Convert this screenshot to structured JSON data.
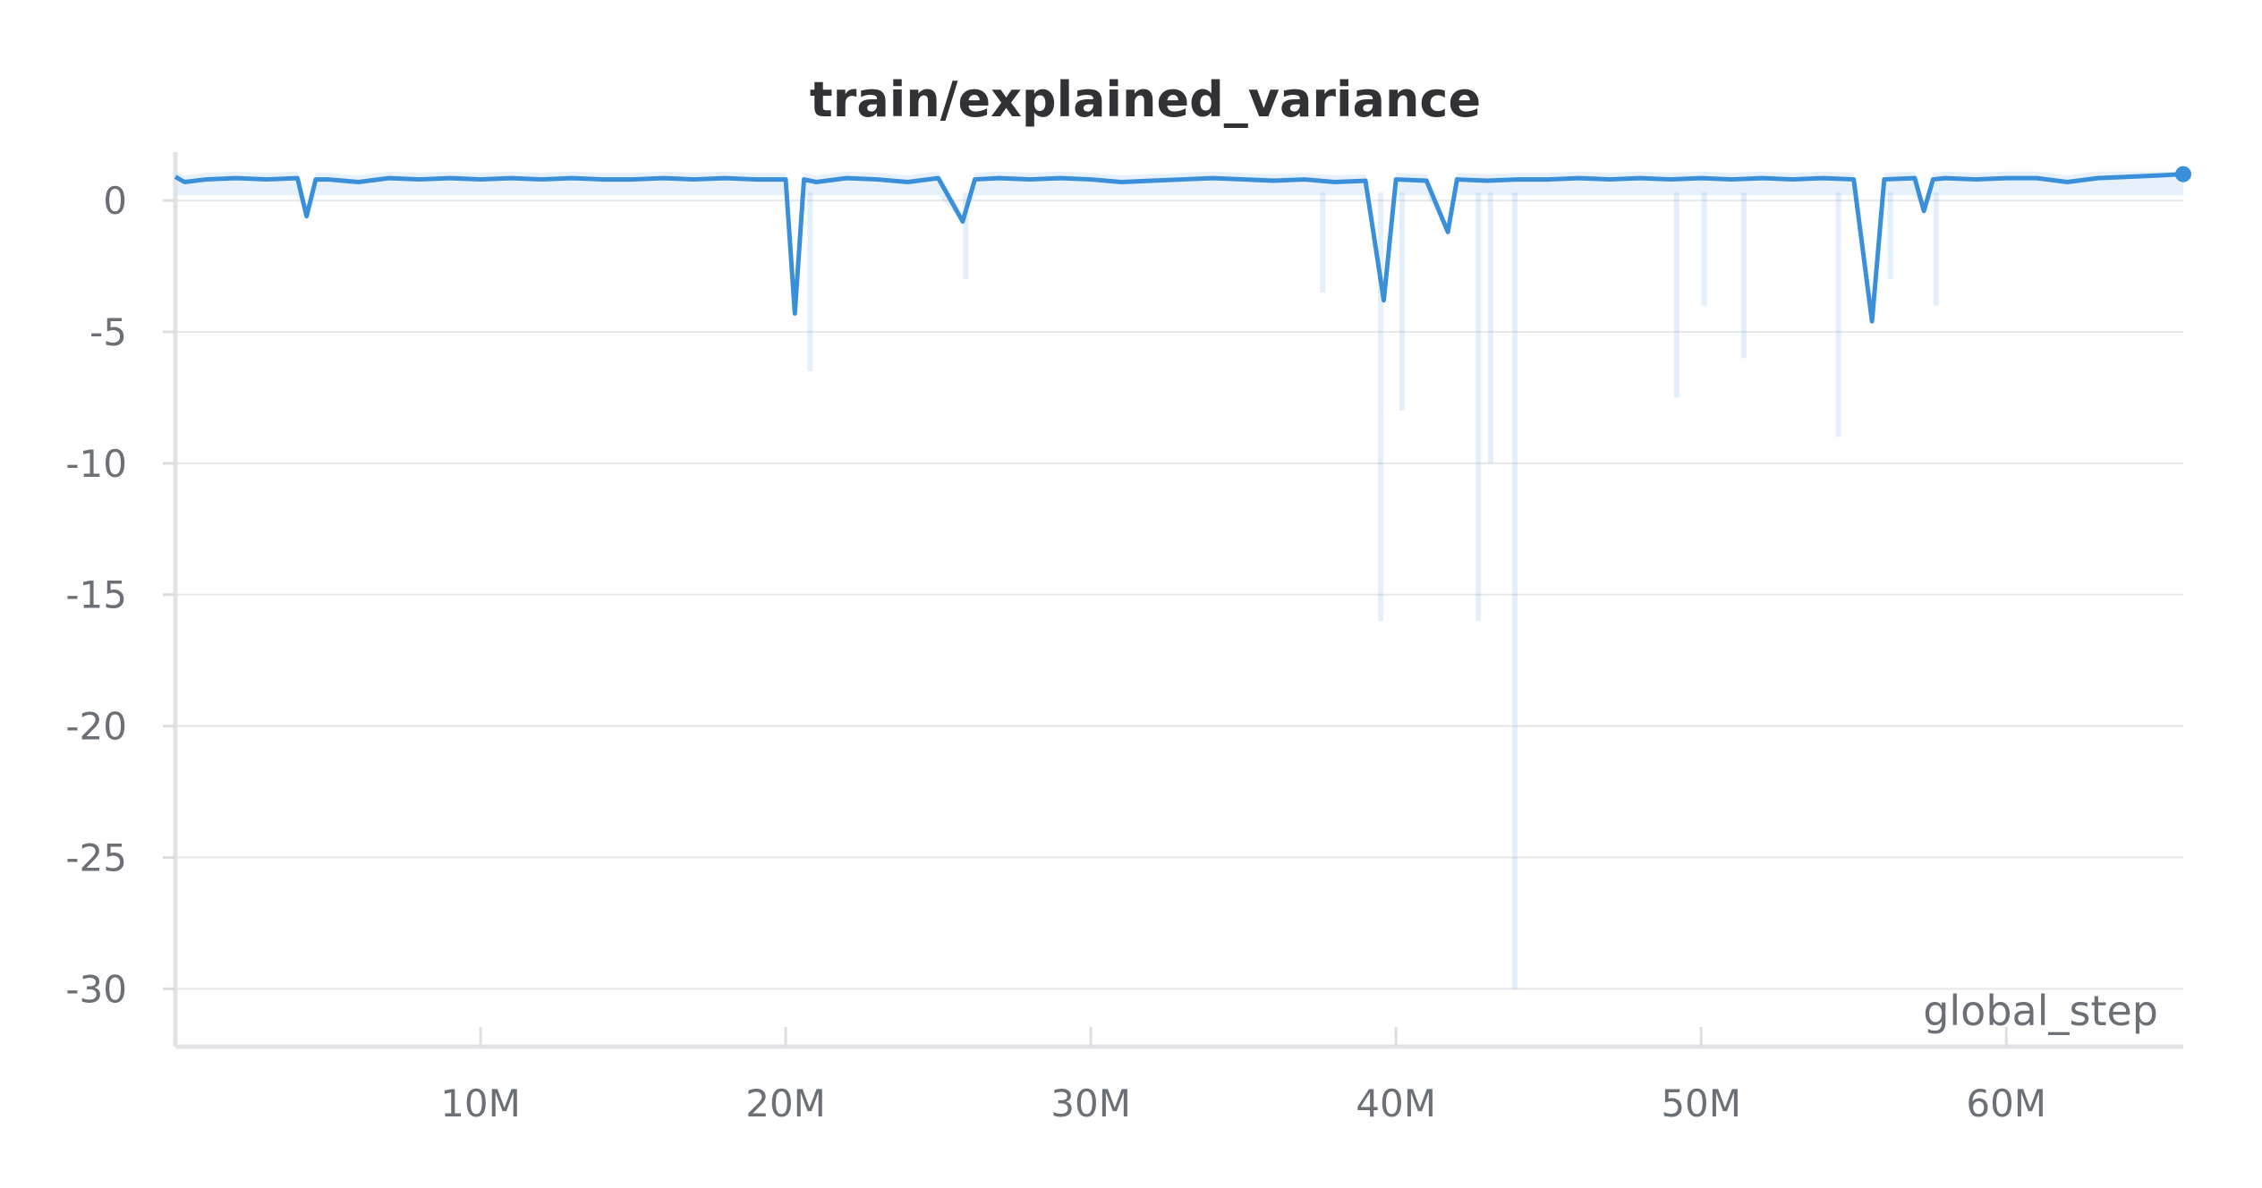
{
  "chart_data": {
    "type": "line",
    "title": "train/explained_variance",
    "xlabel": "global_step",
    "ylabel": "",
    "xlim": [
      0,
      65800000
    ],
    "ylim": [
      -32.2,
      1.5
    ],
    "grid": true,
    "legend": "none",
    "x_ticks": [
      {
        "value": 10000000,
        "label": "10M"
      },
      {
        "value": 20000000,
        "label": "20M"
      },
      {
        "value": 30000000,
        "label": "30M"
      },
      {
        "value": 40000000,
        "label": "40M"
      },
      {
        "value": 50000000,
        "label": "50M"
      },
      {
        "value": 60000000,
        "label": "60M"
      }
    ],
    "y_ticks": [
      {
        "value": 0,
        "label": "0"
      },
      {
        "value": -5,
        "label": "-5"
      },
      {
        "value": -10,
        "label": "-10"
      },
      {
        "value": -15,
        "label": "-15"
      },
      {
        "value": -20,
        "label": "-20"
      },
      {
        "value": -25,
        "label": "-25"
      },
      {
        "value": -30,
        "label": "-30"
      }
    ],
    "series": [
      {
        "color": "#3a8fdb",
        "x": [
          0,
          300000,
          1000000,
          2000000,
          3000000,
          4000000,
          4300000,
          4600000,
          5000000,
          6000000,
          7000000,
          8000000,
          9000000,
          10000000,
          11000000,
          12000000,
          13000000,
          14000000,
          15000000,
          16000000,
          17000000,
          18000000,
          19000000,
          20000000,
          20300000,
          20600000,
          21000000,
          22000000,
          23000000,
          24000000,
          25000000,
          25800000,
          26200000,
          27000000,
          28000000,
          29000000,
          30000000,
          31000000,
          32000000,
          33000000,
          34000000,
          35000000,
          36000000,
          37000000,
          38000000,
          39000000,
          39600000,
          40000000,
          41000000,
          41700000,
          42000000,
          43000000,
          44000000,
          45000000,
          46000000,
          47000000,
          48000000,
          49000000,
          50000000,
          51000000,
          52000000,
          53000000,
          54000000,
          55000000,
          55600000,
          56000000,
          57000000,
          57300000,
          57600000,
          58000000,
          59000000,
          60000000,
          61000000,
          62000000,
          63000000,
          64000000,
          65000000,
          65800000
        ],
        "y": [
          0.9,
          0.7,
          0.8,
          0.85,
          0.8,
          0.85,
          -0.6,
          0.8,
          0.8,
          0.7,
          0.85,
          0.8,
          0.85,
          0.8,
          0.85,
          0.8,
          0.85,
          0.8,
          0.8,
          0.85,
          0.8,
          0.85,
          0.8,
          0.8,
          -4.3,
          0.8,
          0.7,
          0.85,
          0.8,
          0.7,
          0.85,
          -0.8,
          0.8,
          0.85,
          0.8,
          0.85,
          0.8,
          0.7,
          0.75,
          0.8,
          0.85,
          0.8,
          0.75,
          0.8,
          0.7,
          0.75,
          -3.8,
          0.8,
          0.75,
          -1.2,
          0.8,
          0.75,
          0.8,
          0.8,
          0.85,
          0.8,
          0.85,
          0.8,
          0.85,
          0.8,
          0.85,
          0.8,
          0.85,
          0.8,
          -4.6,
          0.8,
          0.85,
          -0.4,
          0.8,
          0.85,
          0.8,
          0.85,
          0.85,
          0.7,
          0.85,
          0.9,
          0.95,
          1.0
        ]
      }
    ],
    "shaded_spikes": [
      {
        "x": 20800000,
        "min": -6.5
      },
      {
        "x": 25900000,
        "min": -3.0
      },
      {
        "x": 37600000,
        "min": -3.5
      },
      {
        "x": 39500000,
        "min": -16.0
      },
      {
        "x": 40200000,
        "min": -8.0
      },
      {
        "x": 42700000,
        "min": -16.0
      },
      {
        "x": 43100000,
        "min": -10.0
      },
      {
        "x": 43900000,
        "min": -30.0
      },
      {
        "x": 49200000,
        "min": -7.5
      },
      {
        "x": 50100000,
        "min": -4.0
      },
      {
        "x": 51400000,
        "min": -6.0
      },
      {
        "x": 54500000,
        "min": -9.0
      },
      {
        "x": 56200000,
        "min": -3.0
      },
      {
        "x": 57700000,
        "min": -4.0
      }
    ]
  }
}
